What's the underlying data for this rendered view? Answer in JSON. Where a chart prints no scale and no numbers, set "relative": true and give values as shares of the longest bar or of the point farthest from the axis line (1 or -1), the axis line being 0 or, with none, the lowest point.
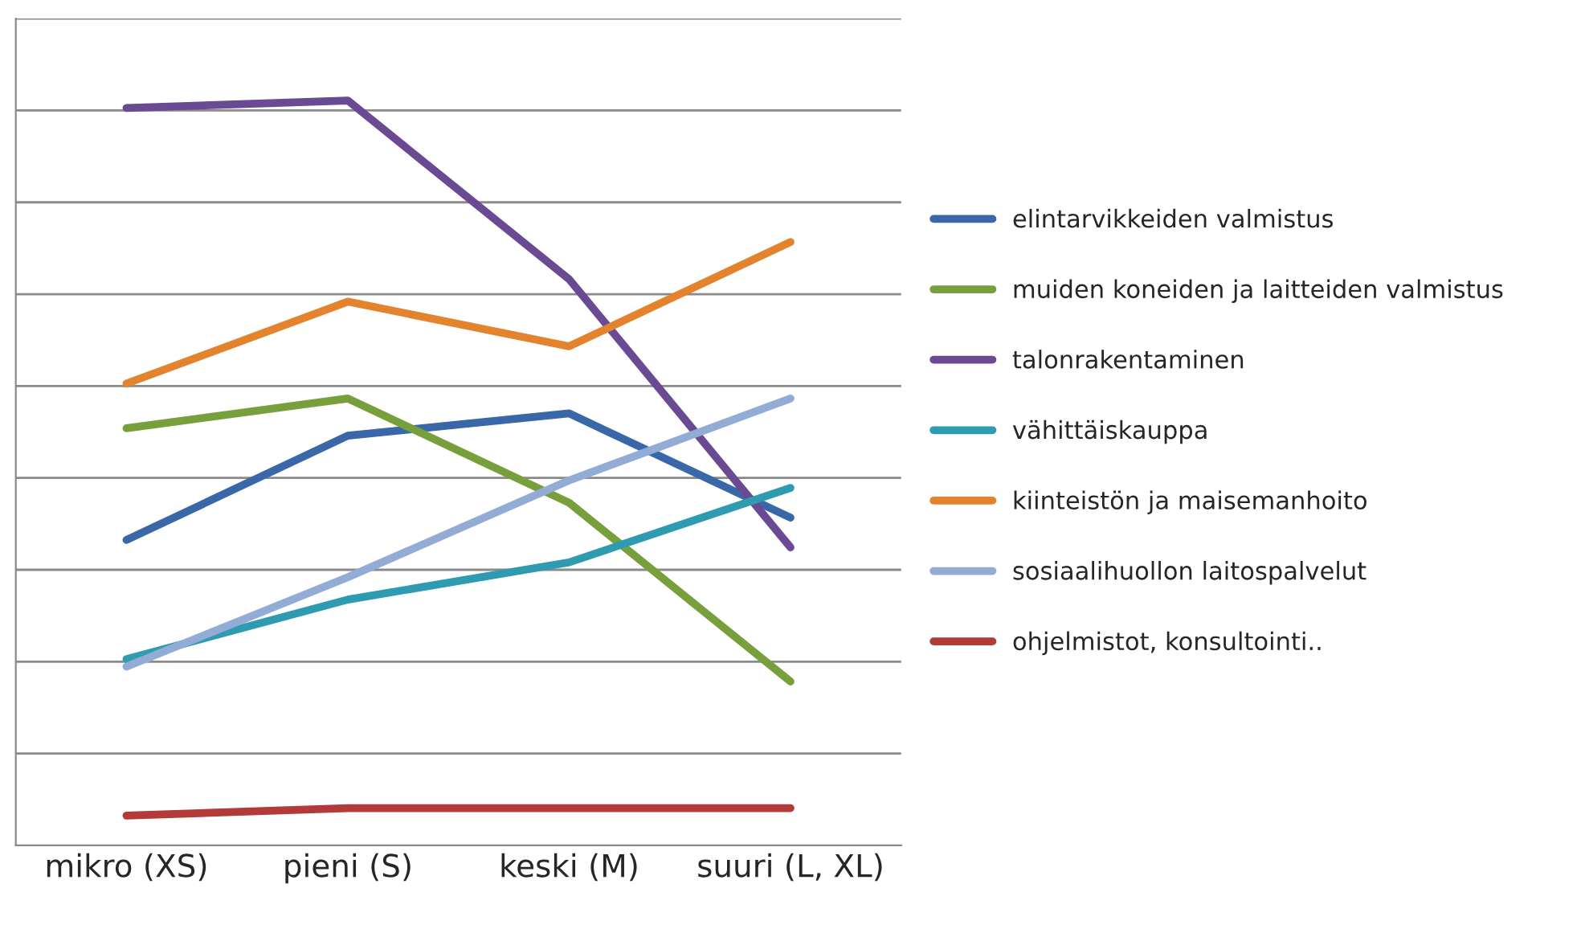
{
  "chart_data": {
    "type": "line",
    "relative": true,
    "grid": "y",
    "legend": "right",
    "line_style": "solid",
    "marker": "none",
    "categories": [
      "mikro (XS)",
      "pieni (S)",
      "keski (M)",
      "suuri (L, XL)"
    ],
    "series": [
      {
        "name": "elintarvikkeiden valmistus",
        "color": "#3a67a8",
        "values": [
          0.41,
          0.55,
          0.58,
          0.44
        ]
      },
      {
        "name": "muiden koneiden ja laitteiden valmistus",
        "color": "#77a03c",
        "values": [
          0.56,
          0.6,
          0.46,
          0.22
        ]
      },
      {
        "name": "talonrakentaminen",
        "color": "#6a4a93",
        "values": [
          0.99,
          1.0,
          0.76,
          0.4
        ]
      },
      {
        "name": "vähittäiskauppa",
        "color": "#2f9bb0",
        "values": [
          0.25,
          0.33,
          0.38,
          0.48
        ]
      },
      {
        "name": "kiinteistön ja maisemanhoito",
        "color": "#e3832e",
        "values": [
          0.62,
          0.73,
          0.67,
          0.81
        ]
      },
      {
        "name": "sosiaalihuollon laitospalvelut",
        "color": "#93acd6",
        "values": [
          0.24,
          0.36,
          0.49,
          0.6
        ]
      },
      {
        "name": "ohjelmistot, konsultointi..",
        "color": "#b23b3a",
        "values": [
          0.04,
          0.05,
          0.05,
          0.05
        ]
      }
    ]
  }
}
